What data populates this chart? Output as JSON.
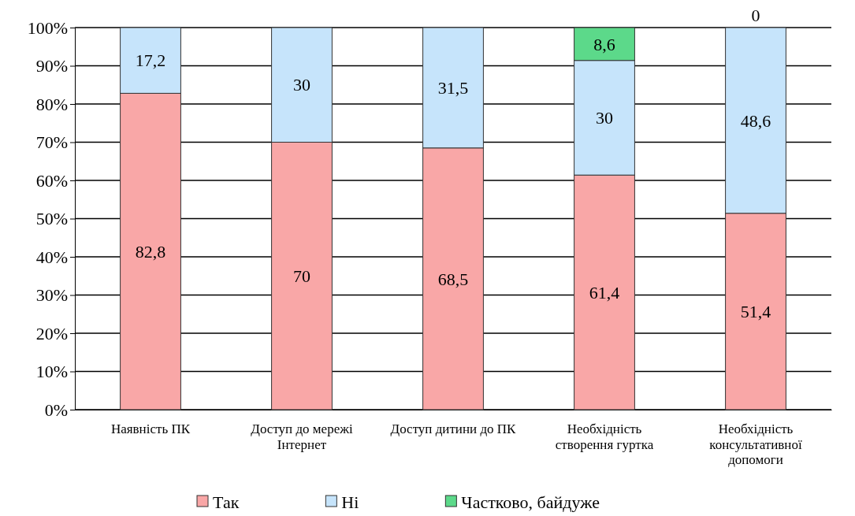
{
  "chart_data": {
    "type": "bar",
    "stacked": true,
    "categories": [
      "Наявність ПК",
      "Доступ до мережі Інтернет",
      "Доступ дитини до ПК",
      "Необхідність створення гуртка",
      "Необхідність консультативної допомоги"
    ],
    "series": [
      {
        "name": "Так",
        "color": "#f9a7a7",
        "values": [
          82.8,
          70,
          68.5,
          61.4,
          51.4
        ],
        "value_labels": [
          "82,8",
          "70",
          "68,5",
          "61,4",
          "51,4"
        ]
      },
      {
        "name": "Ні",
        "color": "#c6e4fb",
        "values": [
          17.2,
          30,
          31.5,
          30,
          48.6
        ],
        "value_labels": [
          "17,2",
          "30",
          "31,5",
          "30",
          "48,6"
        ]
      },
      {
        "name": "Частково, байдуже",
        "color": "#5cd98a",
        "values": [
          0,
          0,
          0,
          8.6,
          0
        ],
        "value_labels": [
          null,
          null,
          null,
          "8,6",
          "0"
        ]
      }
    ],
    "ylim": [
      0,
      100
    ],
    "yticks": [
      {
        "value": 0,
        "label": "0%"
      },
      {
        "value": 10,
        "label": "10%"
      },
      {
        "value": 20,
        "label": "20%"
      },
      {
        "value": 30,
        "label": "30%"
      },
      {
        "value": 40,
        "label": "40%"
      },
      {
        "value": 50,
        "label": "50%"
      },
      {
        "value": 60,
        "label": "60%"
      },
      {
        "value": 70,
        "label": "70%"
      },
      {
        "value": 80,
        "label": "80%"
      },
      {
        "value": 90,
        "label": "90%"
      },
      {
        "value": 100,
        "label": "100%"
      }
    ],
    "grid": "y",
    "legend": "bottom"
  }
}
